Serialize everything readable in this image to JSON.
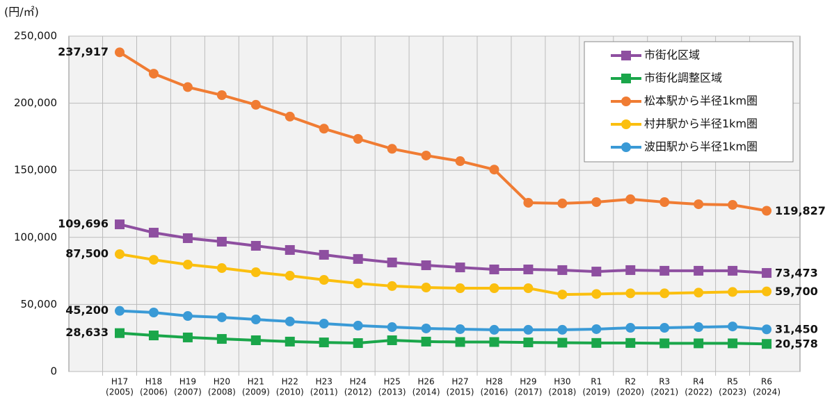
{
  "chart_data": {
    "type": "line",
    "unit": "(円/㎡)",
    "categories": [
      [
        "H17",
        "(2005)"
      ],
      [
        "H18",
        "(2006)"
      ],
      [
        "H19",
        "(2007)"
      ],
      [
        "H20",
        "(2008)"
      ],
      [
        "H21",
        "(2009)"
      ],
      [
        "H22",
        "(2010)"
      ],
      [
        "H23",
        "(2011)"
      ],
      [
        "H24",
        "(2012)"
      ],
      [
        "H25",
        "(2013)"
      ],
      [
        "H26",
        "(2014)"
      ],
      [
        "H27",
        "(2015)"
      ],
      [
        "H28",
        "(2016)"
      ],
      [
        "H29",
        "(2017)"
      ],
      [
        "H30",
        "(2018)"
      ],
      [
        "R1",
        "(2019)"
      ],
      [
        "R2",
        "(2020)"
      ],
      [
        "R3",
        "(2021)"
      ],
      [
        "R4",
        "(2022)"
      ],
      [
        "R5",
        "(2023)"
      ],
      [
        "R6",
        "(2024)"
      ]
    ],
    "ylim": [
      0,
      250000
    ],
    "yticks": [
      0,
      {
        "value": 50000,
        "label": "50,000"
      },
      {
        "value": 100000,
        "label": "100,000"
      },
      {
        "value": 150000,
        "label": "150,000"
      },
      {
        "value": 200000,
        "label": "200,000"
      },
      {
        "value": 250000,
        "label": "250,000"
      }
    ],
    "grid": true,
    "legend": "upper right",
    "series": [
      {
        "name": "市街化区域",
        "color": "#8e4fa0",
        "marker": "square",
        "values": [
          109696,
          103500,
          99400,
          96800,
          93700,
          90600,
          87000,
          83900,
          81300,
          79200,
          77600,
          76100,
          76100,
          75600,
          74500,
          75600,
          75100,
          75100,
          75100,
          73473
        ],
        "value_labels": [
          "109,696",
          null,
          null,
          null,
          null,
          null,
          null,
          null,
          null,
          null,
          null,
          null,
          null,
          null,
          null,
          null,
          null,
          null,
          null,
          "73,473"
        ]
      },
      {
        "name": "市街化調整区域",
        "color": "#1aa64a",
        "marker": "square",
        "values": [
          28633,
          26900,
          25400,
          24300,
          23300,
          22300,
          21700,
          21200,
          23300,
          22300,
          22000,
          22000,
          21700,
          21500,
          21300,
          21300,
          21000,
          21000,
          21000,
          20578
        ],
        "value_labels": [
          "28,633",
          null,
          null,
          null,
          null,
          null,
          null,
          null,
          null,
          null,
          null,
          null,
          null,
          null,
          null,
          null,
          null,
          null,
          null,
          "20,578"
        ]
      },
      {
        "name": "松本駅から半径1km圏",
        "color": "#f07c33",
        "marker": "circle",
        "values": [
          237917,
          222000,
          212000,
          206000,
          198800,
          190000,
          181000,
          173400,
          166000,
          161000,
          156800,
          150500,
          125800,
          125300,
          126300,
          128400,
          126300,
          124700,
          124200,
          119827
        ],
        "value_labels": [
          "237,917",
          null,
          null,
          null,
          null,
          null,
          null,
          null,
          null,
          null,
          null,
          null,
          null,
          null,
          null,
          null,
          null,
          null,
          null,
          "119,827"
        ]
      },
      {
        "name": "村井駅から半径1km圏",
        "color": "#fbbf0f",
        "marker": "circle",
        "values": [
          87500,
          83300,
          79700,
          77100,
          74000,
          71400,
          68300,
          65700,
          63700,
          62600,
          62100,
          62100,
          62100,
          57400,
          57800,
          58300,
          58300,
          58800,
          59300,
          59700
        ],
        "value_labels": [
          "87,500",
          null,
          null,
          null,
          null,
          null,
          null,
          null,
          null,
          null,
          null,
          null,
          null,
          null,
          null,
          null,
          null,
          null,
          null,
          "59,700"
        ]
      },
      {
        "name": "波田駅から半径1km圏",
        "color": "#3a9ad6",
        "marker": "circle",
        "values": [
          45200,
          44000,
          41400,
          40400,
          38800,
          37300,
          35700,
          34200,
          33100,
          32100,
          31600,
          31100,
          31100,
          31100,
          31600,
          32600,
          32600,
          33100,
          33600,
          31450
        ],
        "value_labels": [
          "45,200",
          null,
          null,
          null,
          null,
          null,
          null,
          null,
          null,
          null,
          null,
          null,
          null,
          null,
          null,
          null,
          null,
          null,
          null,
          "31,450"
        ]
      }
    ]
  }
}
